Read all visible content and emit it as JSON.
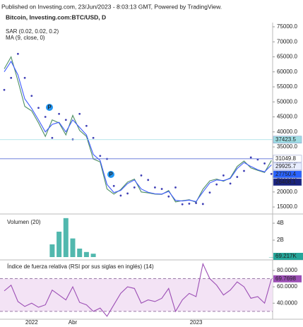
{
  "header": "Published on Investing.com, 23/Jun/2023 - 8:03:13 GMT, Powered by TradingView.",
  "chart_data": [
    {
      "type": "line",
      "title": "Bitcoin, Investing.com:BTC/USD, D",
      "ylim": [
        12900,
        76400
      ],
      "yticks": [
        {
          "value": 15000,
          "label": "15000.0"
        },
        {
          "value": 20000,
          "label": "20000.0"
        },
        {
          "value": 25000,
          "label": "25000.0"
        },
        {
          "value": 30000,
          "label": "30000.0"
        },
        {
          "value": 35000,
          "label": "35000.0"
        },
        {
          "value": 40000,
          "label": "40000.0"
        },
        {
          "value": 45000,
          "label": "45000.0"
        },
        {
          "value": 50000,
          "label": "50000.0"
        },
        {
          "value": 55000,
          "label": "55000.0"
        },
        {
          "value": 60000,
          "label": "60000.0"
        },
        {
          "value": 65000,
          "label": "65000.0"
        },
        {
          "value": 70000,
          "label": "70000.0"
        },
        {
          "value": 75000,
          "label": "75000.0"
        }
      ],
      "series": [
        {
          "color": "#4e8f63",
          "style": "line",
          "values": [
            61000,
            65000,
            57000,
            48500,
            47000,
            43000,
            38500,
            44000,
            43000,
            39000,
            45500,
            40500,
            38500,
            31000,
            30000,
            21000,
            19300,
            20800,
            23300,
            24300,
            20000,
            19700,
            19300,
            19200,
            20500,
            16700,
            17100,
            17400,
            16600,
            20900,
            23700,
            24300,
            23600,
            24700,
            28500,
            30300,
            28000,
            27200,
            26500,
            30500
          ]
        },
        {
          "name": "SAR (0.02, 0.02, 0.2)",
          "color": "#3f3fb5",
          "style": "dots",
          "values": [
            54000,
            58000,
            66000,
            58000,
            52000,
            48000,
            45000,
            38000,
            46000,
            44000,
            37500,
            46000,
            42000,
            38000,
            32000,
            31000,
            22000,
            18800,
            19500,
            21500,
            25500,
            24000,
            21500,
            21000,
            18500,
            21500,
            15900,
            16100,
            16300,
            16000,
            19800,
            22500,
            25500,
            22800,
            25000,
            27000,
            31500,
            30800,
            29500,
            26000
          ]
        },
        {
          "name": "MA (9, close, 0)",
          "color": "#3d5afe",
          "style": "line",
          "values": [
            60000,
            63500,
            59000,
            51000,
            47800,
            44000,
            40000,
            42500,
            43200,
            40000,
            44000,
            41500,
            39000,
            32500,
            30500,
            22500,
            19800,
            20500,
            22800,
            24000,
            21000,
            19900,
            19400,
            19300,
            20200,
            17200,
            17000,
            17300,
            16800,
            20000,
            23000,
            24000,
            23800,
            24500,
            27800,
            29800,
            28500,
            27400,
            26700,
            29000
          ]
        }
      ],
      "price_markers": [
        {
          "value": 37423.5,
          "color": "#9fdde3",
          "text_color": "#1a4f57",
          "line": true
        },
        {
          "value": 31049.8,
          "color": "#ffffff",
          "text_color": "#1e2a6b",
          "line": true
        },
        {
          "value": 29925.7,
          "color": "#e8edff",
          "text_color": "#2962ff",
          "line": false
        },
        {
          "value": 27750.4,
          "color": "#2962ff",
          "text_color": "#ffffff",
          "line": false
        },
        {
          "value": 26408.1,
          "color": "#1a237e",
          "text_color": "#ffffff",
          "line": false
        }
      ],
      "event_labels": [
        "P",
        "P"
      ]
    },
    {
      "type": "bar",
      "title": "Volumen (20)",
      "ylim": [
        0,
        4920000000
      ],
      "yticks": [
        {
          "value": 2000000000,
          "label": "2B"
        },
        {
          "value": 4000000000,
          "label": "4B"
        }
      ],
      "series": [
        {
          "color": "#26a69a",
          "values": [
            null,
            null,
            null,
            null,
            null,
            null,
            null,
            1500000000,
            3000000000,
            4600000000,
            2200000000,
            1000000000,
            600000000,
            400000000,
            null,
            null,
            null,
            null,
            null,
            null,
            null,
            null,
            null,
            null,
            null,
            null,
            null,
            null,
            null,
            null,
            null,
            null,
            null,
            null,
            null,
            null,
            null,
            null,
            null,
            69217
          ],
          "value_labels": [
            null,
            null,
            null,
            null,
            null,
            null,
            null,
            null,
            null,
            null,
            null,
            null,
            null,
            null,
            null,
            null,
            null,
            null,
            null,
            null,
            null,
            null,
            null,
            null,
            null,
            null,
            null,
            null,
            null,
            null,
            null,
            null,
            null,
            null,
            null,
            null,
            null,
            null,
            null,
            "69.217K"
          ]
        }
      ]
    },
    {
      "type": "line",
      "title": "Índice de fuerza relativa (RSI por sus siglas en inglés) (14)",
      "categories": [
        null,
        null,
        null,
        null,
        "2022",
        null,
        null,
        null,
        null,
        null,
        "Abr",
        null,
        null,
        null,
        null,
        null,
        null,
        null,
        null,
        null,
        null,
        null,
        null,
        null,
        null,
        null,
        null,
        null,
        "2023",
        null,
        null,
        null,
        null,
        null,
        null,
        null,
        null,
        null,
        null,
        null
      ],
      "ylim": [
        20.4,
        89.4
      ],
      "yticks": [
        {
          "value": 40,
          "label": "40.0000"
        },
        {
          "value": 60,
          "label": "60.0000"
        },
        {
          "value": 80,
          "label": "80.0000"
        }
      ],
      "band": [
        30,
        70
      ],
      "band_color": "#f3e3f5",
      "series": [
        {
          "color": "#9c4fb5",
          "style": "line",
          "last_label": true,
          "values": [
            55,
            62,
            42,
            36,
            40,
            35,
            38,
            56,
            50,
            44,
            60,
            41,
            38,
            30,
            34,
            24,
            38,
            52,
            60,
            58,
            40,
            44,
            42,
            46,
            58,
            30,
            44,
            52,
            48,
            88,
            70,
            62,
            50,
            56,
            66,
            60,
            46,
            48,
            40,
            69.7698
          ]
        }
      ]
    }
  ]
}
